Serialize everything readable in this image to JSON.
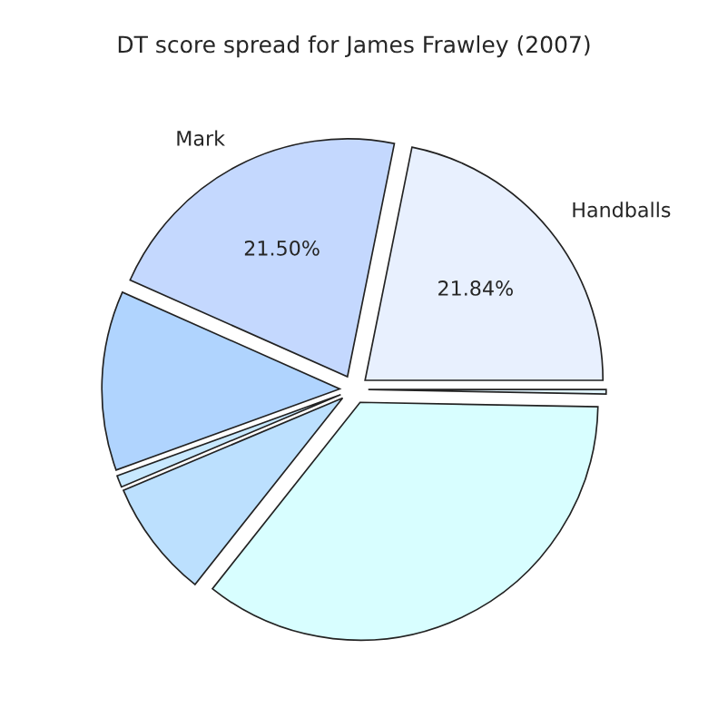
{
  "chart_data": {
    "type": "pie",
    "title": "DT score spread for James Frawley (2007)",
    "categories": [
      "Handballs",
      "Mark",
      null,
      null,
      null,
      null,
      null
    ],
    "values": [
      21.84,
      21.5,
      12.2,
      0.8,
      8.0,
      35.36,
      0.3
    ],
    "value_labels": [
      "21.84%",
      "21.50%",
      null,
      null,
      null,
      null,
      null
    ],
    "colors": [
      "#e8f0fe",
      "#c4d8fe",
      "#b0d4fe",
      "#c8e8fe",
      "#bce0fe",
      "#d8feff",
      "#e0f4fe"
    ]
  }
}
